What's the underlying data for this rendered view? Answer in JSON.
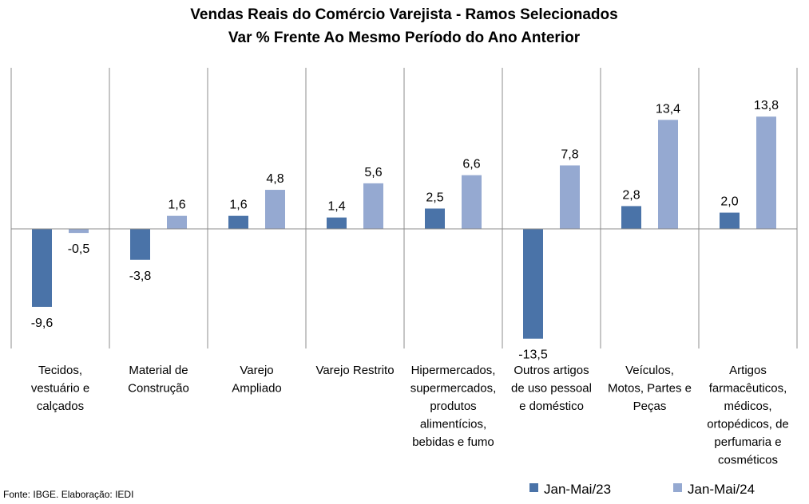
{
  "chart_data": {
    "type": "bar",
    "title": [
      "Vendas Reais do Comércio Varejista - Ramos Selecionados",
      "Var % Frente Ao Mesmo Período do Ano Anterior"
    ],
    "categories": [
      [
        "Tecidos,",
        "vestuário e",
        "calçados"
      ],
      [
        "Material de",
        "Construção"
      ],
      [
        "Varejo",
        "Ampliado"
      ],
      [
        "Varejo Restrito"
      ],
      [
        "Hipermercados,",
        "supermercados,",
        "produtos",
        "alimentícios,",
        "bebidas e fumo"
      ],
      [
        "Outros artigos",
        "de uso pessoal",
        "e doméstico"
      ],
      [
        "Veículos,",
        "Motos, Partes e",
        "Peças"
      ],
      [
        "Artigos",
        "farmacêuticos,",
        "médicos,",
        "ortopédicos, de",
        "perfumaria e",
        "cosméticos"
      ]
    ],
    "series": [
      {
        "name": "Jan-Mai/23",
        "values": [
          -9.6,
          -3.8,
          1.6,
          1.4,
          2.5,
          -13.5,
          2.8,
          2.0
        ],
        "labels": [
          "-9,6",
          "-3,8",
          "1,6",
          "1,4",
          "2,5",
          "-13,5",
          "2,8",
          "2,0"
        ]
      },
      {
        "name": "Jan-Mai/24",
        "values": [
          -0.5,
          1.6,
          4.8,
          5.6,
          6.6,
          7.8,
          13.4,
          13.8
        ],
        "labels": [
          "-0,5",
          "1,6",
          "4,8",
          "5,6",
          "6,6",
          "7,8",
          "13,4",
          "13,8"
        ]
      }
    ],
    "ylim": [
      -15,
      20
    ],
    "grid": "vertical category separators",
    "legend": "bottom-right",
    "colors": {
      "Jan-Mai/23": "#4a73a8",
      "Jan-Mai/24": "#95a9d1"
    }
  },
  "source": "Fonte: IBGE. Elaboração: IEDI"
}
